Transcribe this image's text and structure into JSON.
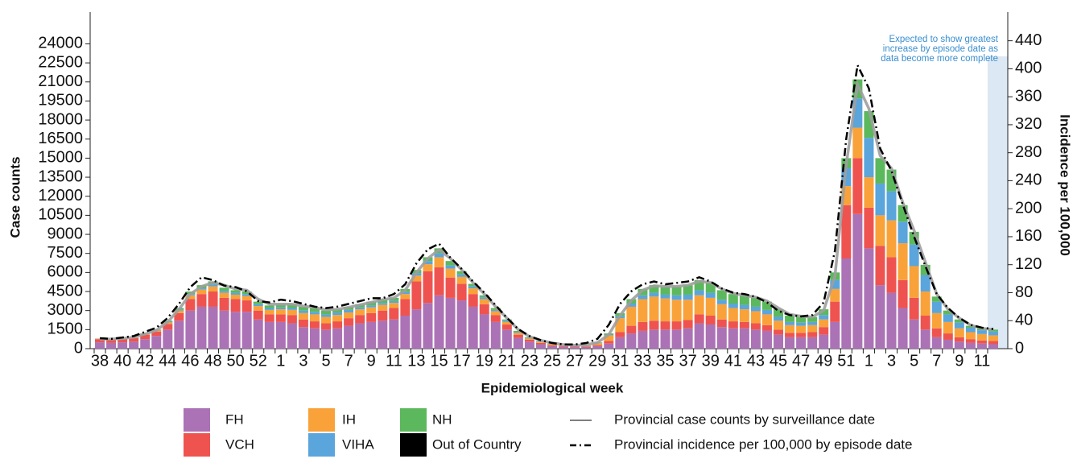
{
  "chart_data": {
    "type": "stacked-bar-line",
    "y_label": "Case counts",
    "y2_label": "Incidence per 100,000",
    "x_label": "Epidemiological week",
    "annotation_lines": [
      "Expected to show greatest",
      "increase by episode date as",
      "data become more complete"
    ],
    "categories": [
      "38",
      null,
      "40",
      null,
      "42",
      null,
      "44",
      null,
      "46",
      null,
      "48",
      null,
      "50",
      null,
      "52",
      null,
      "1",
      null,
      "3",
      null,
      "5",
      null,
      "7",
      null,
      "9",
      null,
      "11",
      null,
      "13",
      null,
      "15",
      null,
      "17",
      null,
      "19",
      null,
      "21",
      null,
      "23",
      null,
      "25",
      null,
      "27",
      null,
      "29",
      null,
      "31",
      null,
      "33",
      null,
      "35",
      null,
      "37",
      null,
      "39",
      null,
      "41",
      null,
      "43",
      null,
      "45",
      null,
      "47",
      null,
      "49",
      null,
      "51",
      null,
      "1",
      null,
      "3",
      null,
      "5",
      null,
      "7",
      null,
      "9",
      null,
      "11",
      null
    ],
    "ylim": [
      0,
      26500
    ],
    "yticks": [
      0,
      1500,
      3000,
      4500,
      6000,
      7500,
      9000,
      10500,
      12000,
      13500,
      15000,
      16500,
      18000,
      19500,
      21000,
      22500,
      24000
    ],
    "y2lim": [
      0,
      481
    ],
    "y2ticks": [
      0,
      40,
      80,
      120,
      160,
      200,
      240,
      280,
      320,
      360,
      400,
      440
    ],
    "series": [
      {
        "name": "FH",
        "color": "#ab72b5",
        "values": [
          500,
          450,
          500,
          550,
          750,
          1000,
          1500,
          2200,
          3000,
          3300,
          3300,
          3000,
          2900,
          2900,
          2300,
          2100,
          2100,
          2000,
          1700,
          1600,
          1500,
          1600,
          1800,
          2000,
          2100,
          2200,
          2300,
          2600,
          3100,
          3600,
          4200,
          4000,
          3800,
          3300,
          2700,
          2100,
          1500,
          850,
          550,
          350,
          200,
          150,
          120,
          130,
          200,
          400,
          900,
          1200,
          1400,
          1500,
          1500,
          1500,
          1600,
          2000,
          1900,
          1700,
          1600,
          1600,
          1500,
          1400,
          1100,
          900,
          900,
          900,
          1100,
          2100,
          7100,
          10600,
          7900,
          5000,
          4400,
          3200,
          2300,
          1500,
          900,
          700,
          550,
          450,
          400,
          350
        ]
      },
      {
        "name": "VCH",
        "color": "#ef5350",
        "values": [
          250,
          250,
          250,
          280,
          350,
          350,
          450,
          600,
          900,
          1000,
          1200,
          1000,
          1000,
          900,
          700,
          600,
          600,
          650,
          600,
          550,
          500,
          550,
          600,
          650,
          700,
          800,
          900,
          1300,
          2200,
          2500,
          2200,
          1600,
          1300,
          1000,
          800,
          550,
          400,
          250,
          150,
          100,
          80,
          60,
          50,
          50,
          80,
          200,
          400,
          600,
          700,
          700,
          650,
          650,
          650,
          700,
          700,
          600,
          550,
          500,
          500,
          450,
          400,
          350,
          350,
          400,
          600,
          1600,
          4200,
          4400,
          3200,
          3100,
          2800,
          2200,
          1700,
          1100,
          700,
          500,
          350,
          300,
          250,
          250
        ]
      },
      {
        "name": "IH",
        "color": "#f9a23a",
        "values": [
          30,
          30,
          30,
          40,
          60,
          80,
          120,
          200,
          300,
          350,
          400,
          400,
          350,
          350,
          350,
          350,
          400,
          400,
          500,
          550,
          500,
          500,
          450,
          450,
          450,
          450,
          400,
          400,
          450,
          550,
          800,
          700,
          550,
          450,
          400,
          300,
          200,
          150,
          100,
          80,
          70,
          50,
          50,
          80,
          150,
          450,
          1100,
          1500,
          1800,
          1900,
          1800,
          1700,
          1600,
          1500,
          1400,
          1200,
          1050,
          1000,
          950,
          850,
          700,
          600,
          550,
          550,
          600,
          1000,
          1500,
          2400,
          2400,
          2400,
          2900,
          2900,
          2500,
          1900,
          1200,
          900,
          700,
          550,
          500,
          450
        ]
      },
      {
        "name": "VIHA",
        "color": "#5aa5dc",
        "values": [
          10,
          10,
          10,
          15,
          20,
          30,
          50,
          80,
          100,
          100,
          150,
          150,
          150,
          150,
          150,
          150,
          150,
          150,
          200,
          200,
          200,
          200,
          200,
          150,
          150,
          150,
          150,
          150,
          200,
          250,
          300,
          250,
          200,
          150,
          150,
          100,
          100,
          50,
          50,
          40,
          30,
          20,
          15,
          20,
          30,
          60,
          150,
          250,
          300,
          300,
          300,
          350,
          400,
          400,
          400,
          350,
          350,
          350,
          350,
          350,
          300,
          250,
          250,
          250,
          350,
          700,
          1400,
          2300,
          3100,
          2500,
          2300,
          1700,
          1700,
          1300,
          900,
          600,
          450,
          350,
          300,
          300
        ]
      },
      {
        "name": "NH",
        "color": "#5cb85c",
        "values": [
          10,
          10,
          10,
          15,
          20,
          40,
          80,
          120,
          200,
          250,
          250,
          250,
          200,
          200,
          200,
          200,
          250,
          300,
          300,
          300,
          300,
          250,
          250,
          250,
          300,
          300,
          250,
          250,
          250,
          300,
          400,
          350,
          250,
          200,
          150,
          150,
          100,
          100,
          50,
          30,
          20,
          20,
          15,
          20,
          40,
          90,
          250,
          350,
          500,
          600,
          650,
          700,
          750,
          800,
          800,
          750,
          750,
          750,
          700,
          650,
          600,
          500,
          450,
          400,
          450,
          600,
          800,
          1500,
          2100,
          2000,
          1700,
          1300,
          1000,
          800,
          400,
          300,
          250,
          150,
          150,
          150
        ]
      },
      {
        "name": "Out of Country",
        "color": "#000000",
        "values": [
          0,
          0,
          0,
          0,
          0,
          0,
          0,
          0,
          0,
          0,
          0,
          0,
          0,
          0,
          0,
          0,
          0,
          0,
          0,
          0,
          0,
          0,
          0,
          0,
          0,
          0,
          0,
          0,
          0,
          0,
          0,
          0,
          0,
          0,
          0,
          0,
          0,
          0,
          0,
          0,
          0,
          0,
          0,
          0,
          0,
          0,
          0,
          0,
          0,
          0,
          0,
          0,
          0,
          0,
          0,
          0,
          0,
          0,
          0,
          0,
          0,
          0,
          0,
          0,
          0,
          0,
          0,
          0,
          0,
          0,
          0,
          0,
          0,
          0,
          0,
          0,
          0,
          0,
          0,
          0
        ]
      }
    ],
    "line_series": [
      {
        "name": "Provincial case counts by surveillance date",
        "color": "#9e9e9e",
        "style": "solid",
        "values": [
          750,
          750,
          800,
          900,
          1150,
          1450,
          2100,
          3100,
          4300,
          4900,
          5200,
          5000,
          4700,
          4600,
          3900,
          3500,
          3500,
          3500,
          3350,
          3250,
          3050,
          3100,
          3250,
          3450,
          3650,
          3850,
          4000,
          4600,
          6000,
          7100,
          7800,
          7100,
          6200,
          5200,
          4300,
          3300,
          2400,
          1500,
          950,
          650,
          450,
          320,
          270,
          300,
          480,
          1100,
          2600,
          3800,
          4600,
          4950,
          4900,
          4900,
          5000,
          5300,
          5200,
          4700,
          4350,
          4200,
          4050,
          3750,
          3200,
          2700,
          2550,
          2500,
          3000,
          5700,
          14500,
          20800,
          18900,
          15200,
          14200,
          11500,
          9300,
          6800,
          4300,
          3100,
          2400,
          1850,
          1600,
          1500
        ]
      },
      {
        "name": "Provincial incidence per 100,000 by episode date",
        "color": "#000000",
        "style": "dashdot",
        "axis": "y2",
        "values": [
          15,
          14,
          16,
          18,
          24,
          30,
          44,
          64,
          88,
          102,
          98,
          90,
          88,
          82,
          68,
          66,
          70,
          68,
          64,
          60,
          58,
          60,
          64,
          68,
          72,
          72,
          78,
          92,
          122,
          142,
          150,
          130,
          114,
          96,
          80,
          62,
          44,
          28,
          18,
          12,
          8,
          6,
          6,
          8,
          14,
          34,
          64,
          82,
          92,
          96,
          92,
          94,
          96,
          102,
          96,
          86,
          80,
          78,
          74,
          66,
          54,
          48,
          46,
          48,
          66,
          140,
          300,
          405,
          372,
          286,
          254,
          206,
          160,
          118,
          78,
          58,
          44,
          34,
          30,
          28
        ]
      }
    ]
  }
}
